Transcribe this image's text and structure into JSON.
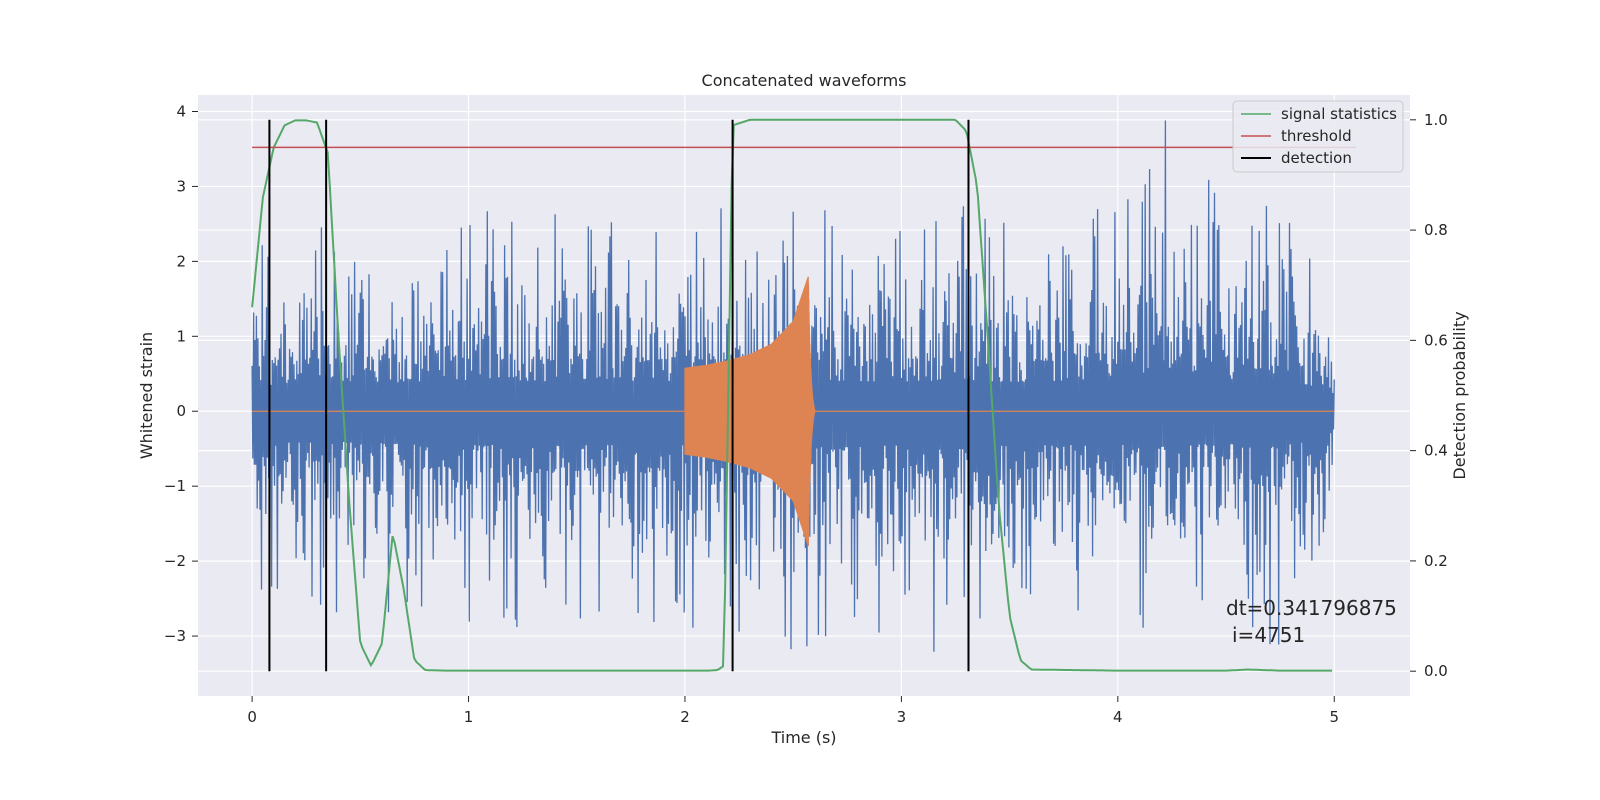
{
  "chart_data": {
    "type": "line",
    "title": "Concatenated waveforms",
    "xlabel": "Time (s)",
    "ylabel": "Whitened strain",
    "y2label": "Detection probability",
    "xlim": [
      -0.25,
      5.35
    ],
    "ylim": [
      -3.8,
      4.22
    ],
    "y2lim": [
      -0.045,
      1.045
    ],
    "xticks": [
      0,
      1,
      2,
      3,
      4,
      5
    ],
    "yticks": [
      -3,
      -2,
      -1,
      0,
      1,
      2,
      3,
      4
    ],
    "y2ticks": [
      0.0,
      0.2,
      0.4,
      0.6,
      0.8,
      1.0
    ],
    "xtick_labels": [
      "0",
      "1",
      "2",
      "3",
      "4",
      "5"
    ],
    "ytick_labels": [
      "−3",
      "−2",
      "−1",
      "0",
      "1",
      "2",
      "3",
      "4"
    ],
    "y2tick_labels": [
      "0.0",
      "0.2",
      "0.4",
      "0.6",
      "0.8",
      "1.0"
    ],
    "grid": true,
    "legend_position": "top-right",
    "background": "#eaeaf2",
    "colors": {
      "noise": "#4c72b0",
      "waveform": "#dd8452",
      "statistic": "#55a868",
      "threshold": "#c44e52",
      "detection": "#000000"
    },
    "series": [
      {
        "name": "",
        "kind": "whitened strain (noise)",
        "axis": "left",
        "envelope_x": [
          0.0,
          0.25,
          0.5,
          0.75,
          1.0,
          1.25,
          1.5,
          1.75,
          2.0,
          2.25,
          2.5,
          2.75,
          3.0,
          3.25,
          3.5,
          3.75,
          4.0,
          4.25,
          4.5,
          4.75,
          5.0
        ],
        "envelope_max": [
          2.2,
          2.6,
          2.6,
          2.5,
          2.8,
          2.6,
          2.8,
          2.6,
          2.7,
          2.8,
          2.8,
          2.7,
          2.6,
          2.8,
          2.6,
          2.7,
          2.7,
          3.9,
          2.8,
          2.8,
          1.6
        ],
        "envelope_min": [
          -2.4,
          -2.6,
          -2.8,
          -2.9,
          -3.0,
          -3.0,
          -3.0,
          -3.0,
          -3.0,
          -3.0,
          -3.2,
          -3.2,
          -3.0,
          -3.4,
          -3.0,
          -3.0,
          -3.0,
          -3.0,
          -2.9,
          -3.2,
          -1.6
        ]
      },
      {
        "name": "",
        "kind": "injected waveform",
        "axis": "left",
        "start": 2.0,
        "merger": 2.57,
        "end": 2.6,
        "x": [
          2.0,
          2.1,
          2.2,
          2.3,
          2.4,
          2.5,
          2.57,
          2.6
        ],
        "amplitude": [
          0.58,
          0.62,
          0.68,
          0.76,
          0.9,
          1.2,
          1.8,
          0.1
        ]
      },
      {
        "name": "signal statistics",
        "axis": "right",
        "x": [
          0.0,
          0.05,
          0.1,
          0.15,
          0.2,
          0.25,
          0.3,
          0.35,
          0.4,
          0.45,
          0.5,
          0.55,
          0.6,
          0.65,
          0.7,
          0.75,
          0.8,
          0.9,
          1.0,
          1.5,
          2.0,
          2.1,
          2.15,
          2.18,
          2.2,
          2.22,
          2.3,
          2.5,
          3.0,
          3.25,
          3.3,
          3.35,
          3.4,
          3.45,
          3.5,
          3.55,
          3.6,
          4.0,
          4.5,
          4.6,
          4.75,
          4.99
        ],
        "values": [
          0.66,
          0.86,
          0.95,
          0.99,
          0.999,
          0.999,
          0.995,
          0.94,
          0.6,
          0.3,
          0.05,
          0.01,
          0.05,
          0.25,
          0.15,
          0.02,
          0.002,
          0.001,
          0.001,
          0.001,
          0.001,
          0.001,
          0.002,
          0.01,
          0.5,
          0.99,
          1.0,
          1.0,
          1.0,
          1.0,
          0.98,
          0.88,
          0.6,
          0.3,
          0.1,
          0.02,
          0.003,
          0.001,
          0.001,
          0.003,
          0.001,
          0.001
        ]
      },
      {
        "name": "threshold",
        "axis": "right",
        "x": [
          0.0,
          5.1
        ],
        "values": [
          0.95,
          0.95
        ]
      },
      {
        "name": "detection",
        "axis": "right",
        "x": [
          0.08,
          0.342,
          2.22,
          3.31
        ],
        "values_from": 0.0,
        "values_to": 1.0
      }
    ],
    "annotations": [
      "dt=0.341796875",
      "i=4751"
    ]
  }
}
